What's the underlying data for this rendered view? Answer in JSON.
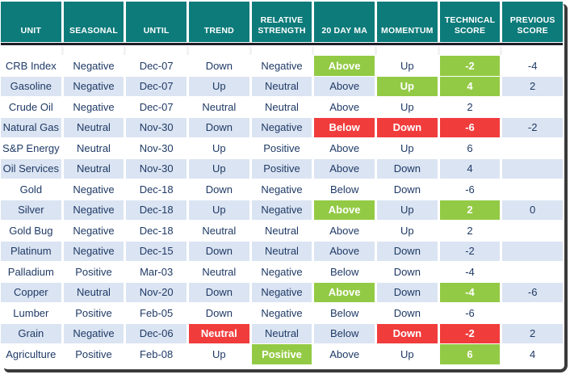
{
  "colors": {
    "header_bg": "#0D7B7A",
    "green": "#93CA45",
    "red": "#F13C3C",
    "stripe": "#DBE4F2",
    "text_navy": "#1F3A66",
    "header_underline": "#1E1E28",
    "frame_shadow": "#3A3A3A"
  },
  "chart_data": {
    "type": "table",
    "title": "",
    "columns": [
      "UNIT",
      "SEASONAL",
      "UNTIL",
      "TREND",
      "RELATIVE STRENGTH",
      "20 DAY MA",
      "MOMENTUM",
      "TECHNICAL SCORE",
      "PREVIOUS SCORE"
    ],
    "rows": [
      {
        "cells": [
          "CRB Index",
          "Negative",
          "Dec-07",
          "Down",
          "Negative",
          "Above",
          "Up",
          "-2",
          "-4"
        ],
        "highlights": {
          "5": "green",
          "7": "green"
        }
      },
      {
        "cells": [
          "Gasoline",
          "Negative",
          "Dec-07",
          "Up",
          "Neutral",
          "Above",
          "Up",
          "4",
          "2"
        ],
        "highlights": {
          "6": "green",
          "7": "green"
        }
      },
      {
        "cells": [
          "Crude Oil",
          "Negative",
          "Dec-07",
          "Neutral",
          "Neutral",
          "Above",
          "Up",
          "2",
          ""
        ],
        "highlights": {}
      },
      {
        "cells": [
          "Natural Gas",
          "Neutral",
          "Nov-30",
          "Down",
          "Negative",
          "Below",
          "Down",
          "-6",
          "-2"
        ],
        "highlights": {
          "5": "red",
          "6": "red",
          "7": "red"
        }
      },
      {
        "cells": [
          "S&P Energy",
          "Neutral",
          "Nov-30",
          "Up",
          "Positive",
          "Above",
          "Up",
          "6",
          ""
        ],
        "highlights": {}
      },
      {
        "cells": [
          "Oil Services",
          "Neutral",
          "Nov-30",
          "Up",
          "Positive",
          "Above",
          "Down",
          "4",
          ""
        ],
        "highlights": {}
      },
      {
        "cells": [
          "Gold",
          "Negative",
          "Dec-18",
          "Down",
          "Negative",
          "Below",
          "Down",
          "-6",
          ""
        ],
        "highlights": {}
      },
      {
        "cells": [
          "Silver",
          "Negative",
          "Dec-18",
          "Up",
          "Negative",
          "Above",
          "Up",
          "2",
          "0"
        ],
        "highlights": {
          "5": "green",
          "7": "green"
        }
      },
      {
        "cells": [
          "Gold Bug",
          "Negative",
          "Dec-18",
          "Neutral",
          "Neutral",
          "Above",
          "Up",
          "2",
          ""
        ],
        "highlights": {}
      },
      {
        "cells": [
          "Platinum",
          "Negative",
          "Dec-15",
          "Down",
          "Neutral",
          "Above",
          "Down",
          "-2",
          ""
        ],
        "highlights": {}
      },
      {
        "cells": [
          "Palladium",
          "Positive",
          "Mar-03",
          "Neutral",
          "Negative",
          "Below",
          "Down",
          "-4",
          ""
        ],
        "highlights": {}
      },
      {
        "cells": [
          "Copper",
          "Neutral",
          "Nov-20",
          "Down",
          "Negative",
          "Above",
          "Down",
          "-4",
          "-6"
        ],
        "highlights": {
          "5": "green",
          "7": "green"
        }
      },
      {
        "cells": [
          "Lumber",
          "Positive",
          "Feb-05",
          "Down",
          "Negative",
          "Below",
          "Down",
          "-6",
          ""
        ],
        "highlights": {}
      },
      {
        "cells": [
          "Grain",
          "Negative",
          "Dec-06",
          "Neutral",
          "Neutral",
          "Below",
          "Down",
          "-2",
          "2"
        ],
        "highlights": {
          "3": "red",
          "6": "red",
          "7": "red"
        }
      },
      {
        "cells": [
          "Agriculture",
          "Positive",
          "Feb-08",
          "Up",
          "Positive",
          "Above",
          "Up",
          "6",
          "4"
        ],
        "highlights": {
          "4": "green",
          "7": "green"
        }
      }
    ]
  }
}
